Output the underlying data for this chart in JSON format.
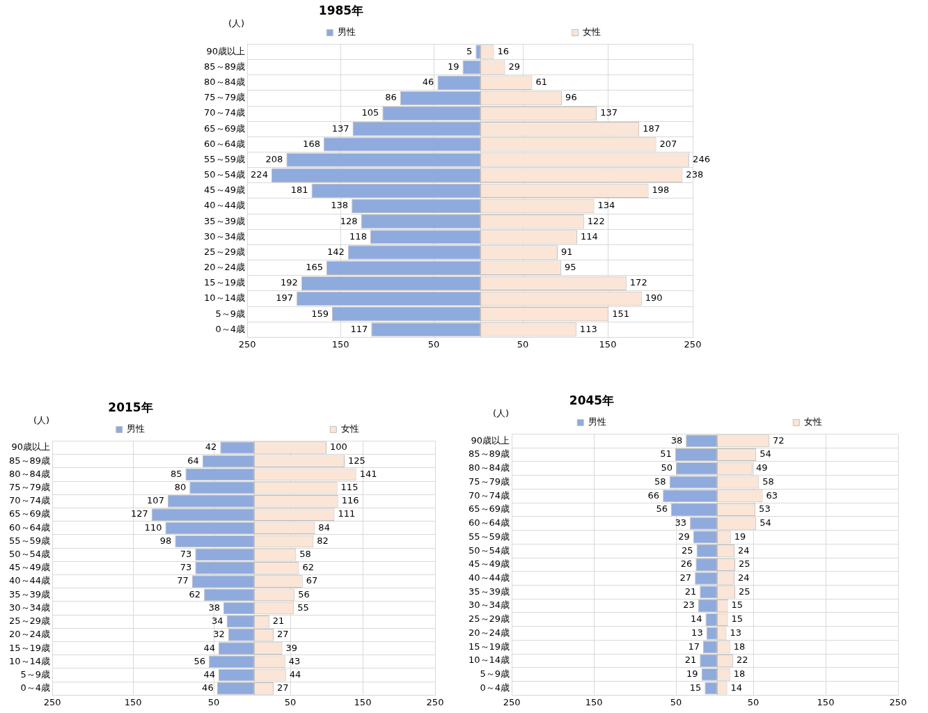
{
  "chart_data": [
    {
      "type": "bar",
      "title": "1985年",
      "ylabel": "(人)",
      "orientation": "horizontal",
      "grid": true,
      "legend": "top",
      "data_labels": true,
      "categories": [
        "90歳以上",
        "85～89歳",
        "80～84歳",
        "75～79歳",
        "70～74歳",
        "65～69歳",
        "60～64歳",
        "55～59歳",
        "50～54歳",
        "45～49歳",
        "40～44歳",
        "35～39歳",
        "30～34歳",
        "25～29歳",
        "20～24歳",
        "15～19歳",
        "10～14歳",
        "5～9歳",
        "0～4歳"
      ],
      "xlim": [
        250,
        0
      ],
      "xticks": [
        250,
        150,
        50
      ],
      "series": [
        {
          "name": "男性",
          "color": "#8faadc",
          "values": [
            5,
            19,
            46,
            86,
            105,
            137,
            168,
            208,
            224,
            181,
            138,
            128,
            118,
            142,
            165,
            192,
            197,
            159,
            117
          ]
        }
      ]
    },
    {
      "type": "bar",
      "orientation": "horizontal",
      "grid": true,
      "legend": "top",
      "data_labels": true,
      "tick_labels": "x",
      "categories": [
        null,
        null,
        null,
        null,
        null,
        null,
        null,
        null,
        null,
        null,
        null,
        null,
        null,
        null,
        null,
        null,
        null,
        null,
        null
      ],
      "xlim": [
        0,
        250
      ],
      "xticks": [
        50,
        150,
        250
      ],
      "series": [
        {
          "name": "女性",
          "color": "#fbe5d6",
          "values": [
            16,
            29,
            61,
            96,
            137,
            187,
            207,
            246,
            238,
            198,
            134,
            122,
            114,
            91,
            95,
            172,
            190,
            151,
            113
          ]
        }
      ]
    },
    {
      "type": "bar",
      "title": "2015年",
      "ylabel": "(人)",
      "orientation": "horizontal",
      "grid": true,
      "legend": "top",
      "data_labels": true,
      "categories": [
        "90歳以上",
        "85～89歳",
        "80～84歳",
        "75～79歳",
        "70～74歳",
        "65～69歳",
        "60～64歳",
        "55～59歳",
        "50～54歳",
        "45～49歳",
        "40～44歳",
        "35～39歳",
        "30～34歳",
        "25～29歳",
        "20～24歳",
        "15～19歳",
        "10～14歳",
        "5～9歳",
        "0～4歳"
      ],
      "xlim": [
        250,
        0
      ],
      "xticks": [
        250,
        150,
        50
      ],
      "series": [
        {
          "name": "男性",
          "color": "#8faadc",
          "values": [
            42,
            64,
            85,
            80,
            107,
            127,
            110,
            98,
            73,
            73,
            77,
            62,
            38,
            34,
            32,
            44,
            56,
            44,
            46
          ]
        }
      ]
    },
    {
      "type": "bar",
      "orientation": "horizontal",
      "grid": true,
      "legend": "top",
      "data_labels": true,
      "tick_labels": "x",
      "categories": [
        null,
        null,
        null,
        null,
        null,
        null,
        null,
        null,
        null,
        null,
        null,
        null,
        null,
        null,
        null,
        null,
        null,
        null,
        null
      ],
      "xlim": [
        0,
        250
      ],
      "xticks": [
        50,
        150,
        250
      ],
      "series": [
        {
          "name": "女性",
          "color": "#fbe5d6",
          "values": [
            100,
            125,
            141,
            115,
            116,
            111,
            84,
            82,
            58,
            62,
            67,
            56,
            55,
            21,
            27,
            39,
            43,
            44,
            27
          ]
        }
      ]
    },
    {
      "type": "bar",
      "title": "2045年",
      "ylabel": "(人)",
      "orientation": "horizontal",
      "grid": true,
      "legend": "top",
      "data_labels": true,
      "categories": [
        "90歳以上",
        "85～89歳",
        "80～84歳",
        "75～79歳",
        "70～74歳",
        "65～69歳",
        "60～64歳",
        "55～59歳",
        "50～54歳",
        "45～49歳",
        "40～44歳",
        "35～39歳",
        "30～34歳",
        "25～29歳",
        "20～24歳",
        "15～19歳",
        "10～14歳",
        "5～9歳",
        "0～4歳"
      ],
      "xlim": [
        250,
        0
      ],
      "xticks": [
        250,
        150,
        50
      ],
      "series": [
        {
          "name": "男性",
          "color": "#8faadc",
          "values": [
            38,
            51,
            50,
            58,
            66,
            56,
            33,
            29,
            25,
            26,
            27,
            21,
            23,
            14,
            13,
            17,
            21,
            19,
            15
          ]
        }
      ]
    },
    {
      "type": "bar",
      "orientation": "horizontal",
      "grid": true,
      "legend": "top",
      "data_labels": true,
      "tick_labels": "x",
      "categories": [
        null,
        null,
        null,
        null,
        null,
        null,
        null,
        null,
        null,
        null,
        null,
        null,
        null,
        null,
        null,
        null,
        null,
        null,
        null
      ],
      "xlim": [
        0,
        250
      ],
      "xticks": [
        50,
        150,
        250
      ],
      "series": [
        {
          "name": "女性",
          "color": "#fbe5d6",
          "values": [
            72,
            54,
            49,
            58,
            63,
            53,
            54,
            19,
            24,
            25,
            24,
            25,
            15,
            15,
            13,
            18,
            22,
            18,
            14
          ]
        }
      ]
    }
  ]
}
